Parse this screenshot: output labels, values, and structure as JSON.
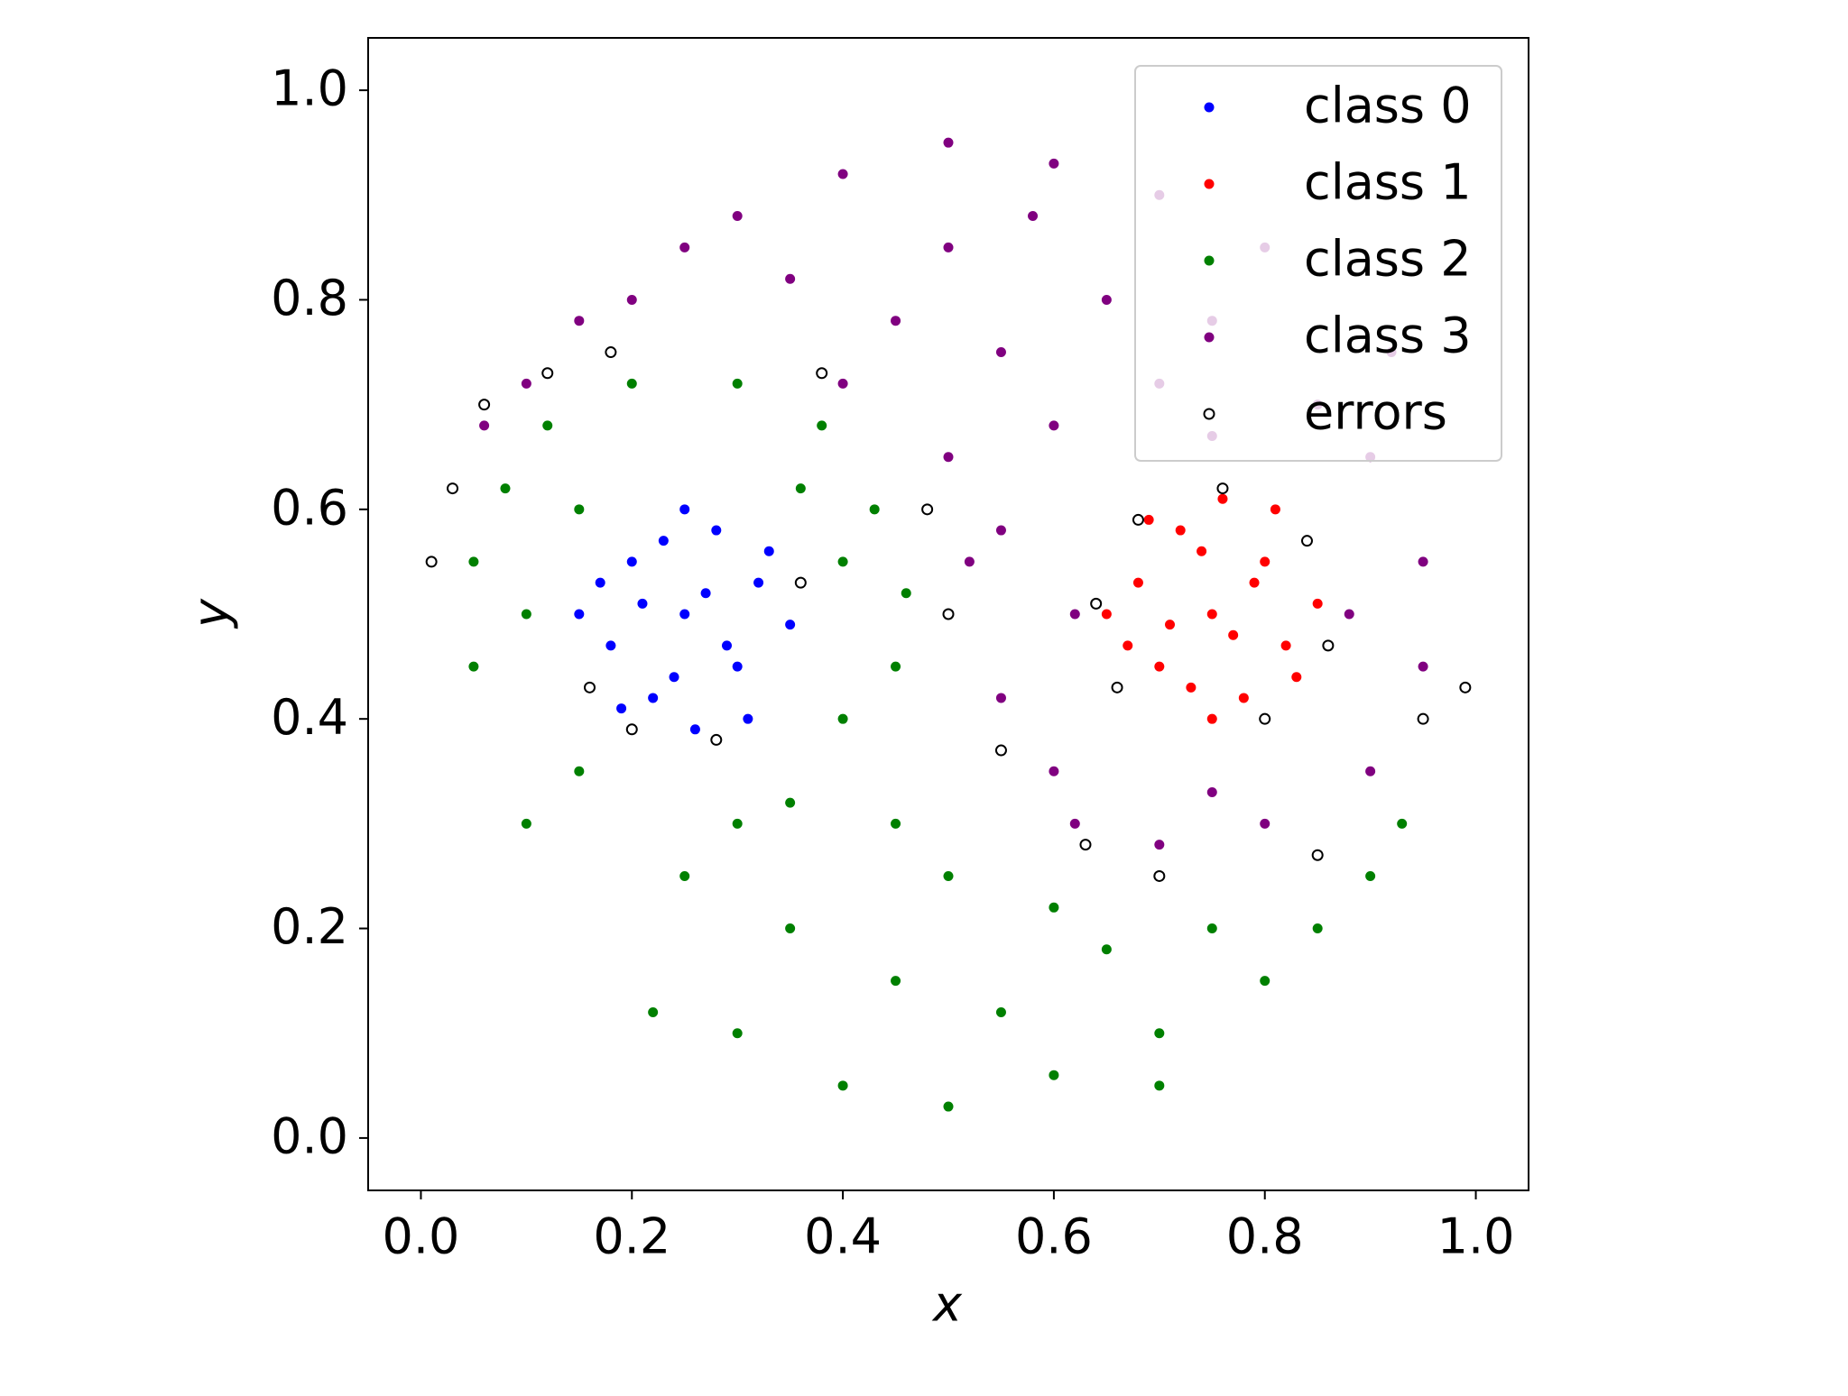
{
  "chart_data": {
    "type": "scatter",
    "xlabel": "x",
    "ylabel": "y",
    "xlim": [
      -0.05,
      1.05
    ],
    "ylim": [
      -0.05,
      1.05
    ],
    "xticks": [
      {
        "value": 0,
        "label": "0.0"
      },
      0.2,
      0.4,
      0.6,
      0.8,
      {
        "value": 1,
        "label": "1.0"
      }
    ],
    "yticks": [
      {
        "value": 0,
        "label": "0.0"
      },
      0.2,
      0.4,
      0.6,
      0.8,
      {
        "value": 1,
        "label": "1.0"
      }
    ],
    "grid": false,
    "legend": "upper right",
    "series": [
      {
        "name": "class 0",
        "color": "#0000ff",
        "marker": "filled",
        "x": [
          0.25,
          0.2,
          0.3,
          0.18,
          0.32,
          0.22,
          0.28,
          0.15,
          0.35,
          0.25,
          0.19,
          0.31,
          0.24,
          0.27,
          0.21,
          0.33,
          0.17,
          0.29,
          0.23,
          0.26
        ],
        "y": [
          0.5,
          0.55,
          0.45,
          0.47,
          0.53,
          0.42,
          0.58,
          0.5,
          0.49,
          0.6,
          0.41,
          0.4,
          0.44,
          0.52,
          0.51,
          0.56,
          0.53,
          0.47,
          0.57,
          0.39
        ]
      },
      {
        "name": "class 1",
        "color": "#ff0000",
        "marker": "filled",
        "x": [
          0.75,
          0.7,
          0.8,
          0.68,
          0.82,
          0.72,
          0.78,
          0.65,
          0.85,
          0.75,
          0.69,
          0.81,
          0.74,
          0.77,
          0.71,
          0.83,
          0.67,
          0.79,
          0.73,
          0.76
        ],
        "y": [
          0.5,
          0.45,
          0.55,
          0.53,
          0.47,
          0.58,
          0.42,
          0.5,
          0.51,
          0.4,
          0.59,
          0.6,
          0.56,
          0.48,
          0.49,
          0.44,
          0.47,
          0.53,
          0.43,
          0.61
        ]
      },
      {
        "name": "class 2",
        "color": "#008000",
        "marker": "filled",
        "x": [
          0.1,
          0.22,
          0.3,
          0.4,
          0.5,
          0.6,
          0.7,
          0.8,
          0.9,
          0.85,
          0.15,
          0.25,
          0.35,
          0.45,
          0.55,
          0.65,
          0.75,
          0.6,
          0.45,
          0.5,
          0.35,
          0.4,
          0.45,
          0.05,
          0.05,
          0.08,
          0.12,
          0.2,
          0.3,
          0.38,
          0.43,
          0.46,
          0.4,
          0.1,
          0.15,
          0.36,
          0.3,
          0.7,
          0.93
        ],
        "y": [
          0.3,
          0.12,
          0.1,
          0.05,
          0.03,
          0.06,
          0.1,
          0.15,
          0.25,
          0.2,
          0.35,
          0.25,
          0.2,
          0.15,
          0.12,
          0.18,
          0.2,
          0.22,
          0.3,
          0.25,
          0.32,
          0.4,
          0.45,
          0.45,
          0.55,
          0.62,
          0.68,
          0.72,
          0.72,
          0.68,
          0.6,
          0.52,
          0.55,
          0.5,
          0.6,
          0.62,
          0.3,
          0.05,
          0.3
        ]
      },
      {
        "name": "class 3",
        "color": "#800080",
        "marker": "filled",
        "x": [
          0.5,
          0.4,
          0.6,
          0.3,
          0.7,
          0.2,
          0.8,
          0.5,
          0.45,
          0.55,
          0.65,
          0.35,
          0.1,
          0.06,
          0.5,
          0.55,
          0.52,
          0.6,
          0.7,
          0.85,
          0.9,
          0.95,
          0.95,
          0.9,
          0.8,
          0.7,
          0.6,
          0.55,
          0.62,
          0.88,
          0.62,
          0.75,
          0.75,
          0.4,
          0.25,
          0.75,
          0.58,
          0.92,
          0.15
        ],
        "y": [
          0.95,
          0.92,
          0.93,
          0.88,
          0.9,
          0.8,
          0.85,
          0.85,
          0.78,
          0.75,
          0.8,
          0.82,
          0.72,
          0.68,
          0.65,
          0.58,
          0.55,
          0.68,
          0.72,
          0.7,
          0.65,
          0.55,
          0.45,
          0.35,
          0.3,
          0.28,
          0.35,
          0.42,
          0.3,
          0.5,
          0.5,
          0.33,
          0.67,
          0.72,
          0.85,
          0.78,
          0.88,
          0.75,
          0.78
        ]
      },
      {
        "name": "errors",
        "color": "#000000",
        "marker": "open",
        "x": [
          0.01,
          0.03,
          0.06,
          0.12,
          0.18,
          0.38,
          0.48,
          0.5,
          0.55,
          0.63,
          0.7,
          0.85,
          0.95,
          0.99,
          0.16,
          0.2,
          0.28,
          0.36,
          0.68,
          0.76,
          0.84,
          0.86,
          0.8,
          0.66,
          0.64
        ],
        "y": [
          0.55,
          0.62,
          0.7,
          0.73,
          0.75,
          0.73,
          0.6,
          0.5,
          0.37,
          0.28,
          0.25,
          0.27,
          0.4,
          0.43,
          0.43,
          0.39,
          0.38,
          0.53,
          0.59,
          0.62,
          0.57,
          0.47,
          0.4,
          0.43,
          0.51
        ]
      }
    ]
  }
}
